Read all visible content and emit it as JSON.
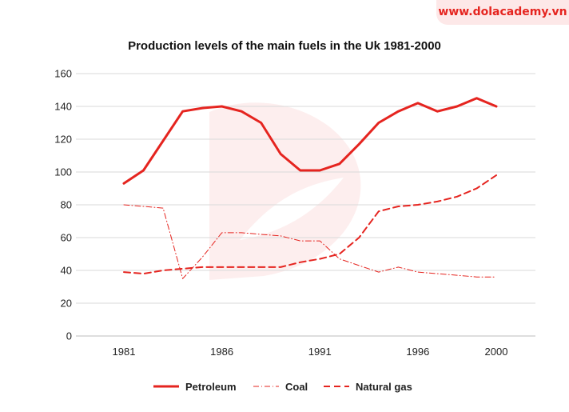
{
  "watermark": {
    "text": "www.dolacademy.vn"
  },
  "chart_data": {
    "type": "line",
    "title": "Production levels of the main fuels in the Uk 1981-2000",
    "xlabel": "",
    "ylabel": "",
    "ylim": [
      0,
      160
    ],
    "xlim": [
      1981,
      2000
    ],
    "yticks": [
      0,
      20,
      40,
      60,
      80,
      100,
      120,
      140,
      160
    ],
    "xticks": [
      "1981",
      "1986",
      "1991",
      "1996",
      "2000"
    ],
    "grid": true,
    "legend_position": "bottom",
    "accent_color": "#e5241f",
    "series": [
      {
        "name": "Petroleum",
        "style": "solid",
        "x": [
          1981,
          1982,
          1983,
          1984,
          1985,
          1986,
          1987,
          1988,
          1989,
          1990,
          1991,
          1992,
          1993,
          1994,
          1995,
          1996,
          1997,
          1998,
          1999,
          2000
        ],
        "values": [
          93,
          101,
          119,
          137,
          139,
          140,
          137,
          130,
          111,
          101,
          101,
          105,
          117,
          130,
          137,
          142,
          137,
          140,
          145,
          140
        ]
      },
      {
        "name": "Coal",
        "style": "dashdot",
        "x": [
          1981,
          1982,
          1983,
          1984,
          1985,
          1986,
          1987,
          1988,
          1989,
          1990,
          1991,
          1992,
          1993,
          1994,
          1995,
          1996,
          1997,
          1998,
          1999,
          2000
        ],
        "values": [
          80,
          79,
          78,
          35,
          48,
          63,
          63,
          62,
          61,
          58,
          58,
          47,
          43,
          39,
          42,
          39,
          38,
          37,
          36,
          36
        ]
      },
      {
        "name": "Natural gas",
        "style": "dashed",
        "x": [
          1981,
          1982,
          1983,
          1984,
          1985,
          1986,
          1987,
          1988,
          1989,
          1990,
          1991,
          1992,
          1993,
          1994,
          1995,
          1996,
          1997,
          1998,
          1999,
          2000
        ],
        "values": [
          39,
          38,
          40,
          41,
          42,
          42,
          42,
          42,
          42,
          45,
          47,
          50,
          60,
          76,
          79,
          80,
          82,
          85,
          90,
          98
        ]
      }
    ]
  }
}
